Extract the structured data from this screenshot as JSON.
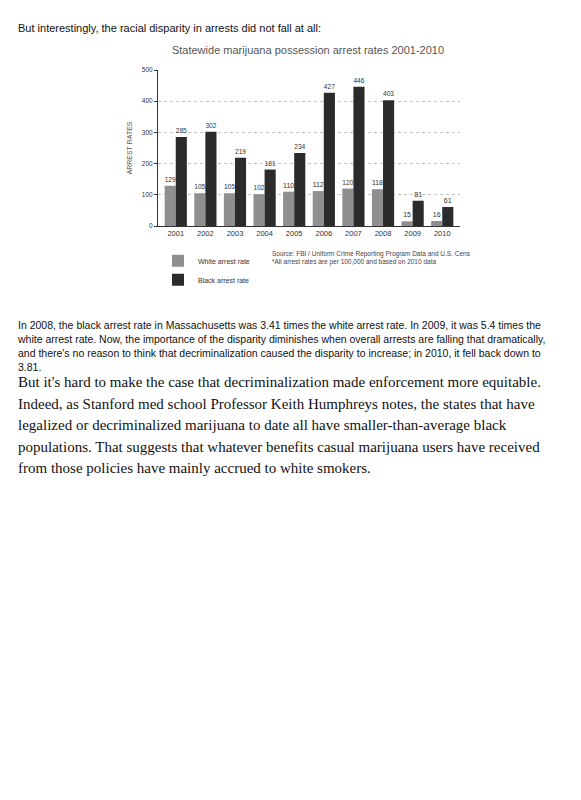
{
  "intro": "But interestingly, the racial disparity in arrests did not fall at all:",
  "chart_data": {
    "type": "bar",
    "title": "Statewide marijuana possession arrest rates 2001-2010",
    "y_label": "ARREST RATES",
    "categories": [
      "2001",
      "2002",
      "2003",
      "2004",
      "2005",
      "2006",
      "2007",
      "2008",
      "2009",
      "2010"
    ],
    "series": [
      {
        "name": "White arrest rate",
        "color": "#8f8f8f",
        "values": [
          129,
          105,
          105,
          102,
          110,
          112,
          120,
          118,
          15,
          16
        ]
      },
      {
        "name": "Black arrest rate",
        "color": "#2b2b2b",
        "values": [
          285,
          302,
          219,
          181,
          234,
          427,
          446,
          403,
          81,
          61
        ]
      }
    ],
    "ylim": [
      0,
      500
    ],
    "yticks": [
      0,
      100,
      200,
      300,
      400,
      500
    ],
    "grid": true,
    "data_labels": true,
    "legend": "lower left",
    "annotations": [
      "Source: FBI / Uniform Crime Reporting Program Data and U.S. Census Data",
      "*All arrest rates are per 100,000 and based on 2010 data"
    ]
  },
  "caption": "In 2008, the black arrest rate in Massachusetts was 3.41 times the white arrest rate. In 2009, it was 5.4 times the white arrest rate. Now, the importance of the disparity diminishes when overall arrests are falling that dramatically, and there's no reason to think that decriminalization caused the disparity to increase; in 2010, it fell back down to 3.81.",
  "body": "But it's hard to make the case that decriminalization made enforcement more equitable. Indeed, as Stanford med school Professor Keith Humphreys notes, the states that have legalized or decriminalized marijuana to date all have smaller-than-average black populations. That suggests that whatever benefits casual marijuana users have received from those policies have mainly accrued to white smokers."
}
